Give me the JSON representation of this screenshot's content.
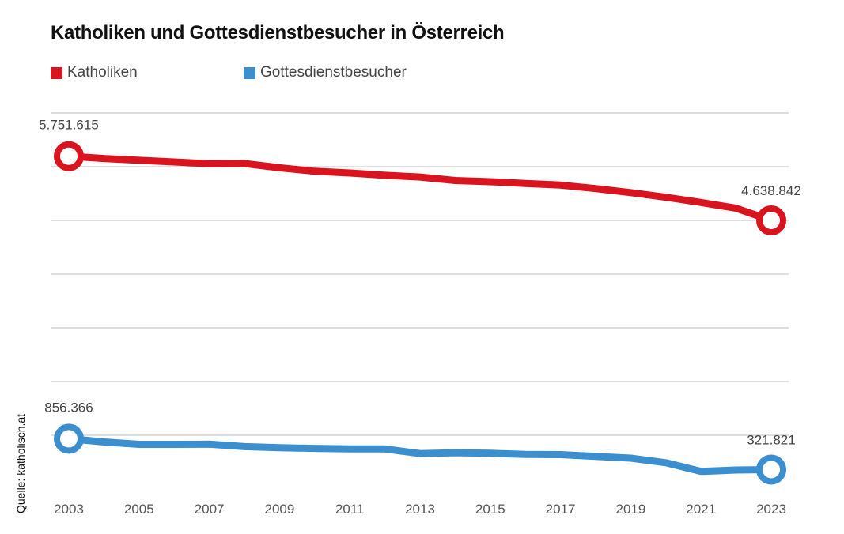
{
  "title": "Katholiken und Gottesdienstbesucher in Österreich",
  "source": "Quelle: katholisch.at",
  "legend": [
    {
      "label": "Katholiken",
      "color": "#d9141e"
    },
    {
      "label": "Gottesdienstbesucher",
      "color": "#3b8fcf"
    }
  ],
  "chart_data": {
    "type": "line",
    "title": "Katholiken und Gottesdienstbesucher in Österreich",
    "xlabel": "",
    "ylabel": "",
    "ylim": [
      0,
      6500000
    ],
    "x": [
      2003,
      2004,
      2005,
      2006,
      2007,
      2008,
      2009,
      2010,
      2011,
      2012,
      2013,
      2014,
      2015,
      2016,
      2017,
      2018,
      2019,
      2020,
      2021,
      2022,
      2023
    ],
    "x_tick_labels": [
      "2003",
      "2005",
      "2007",
      "2009",
      "2011",
      "2013",
      "2015",
      "2017",
      "2019",
      "2021",
      "2023"
    ],
    "grid": true,
    "legend_position": "top-left",
    "series": [
      {
        "name": "Katholiken",
        "color": "#d9141e",
        "values": [
          5751615,
          5712000,
          5680000,
          5651000,
          5621000,
          5624000,
          5550000,
          5490000,
          5460000,
          5420000,
          5390000,
          5330000,
          5310000,
          5280000,
          5250000,
          5190000,
          5120000,
          5040000,
          4950000,
          4850000,
          4638842
        ],
        "start_label": "5.751.615",
        "end_label": "4.638.842"
      },
      {
        "name": "Gottesdienstbesucher",
        "color": "#3b8fcf",
        "values": [
          856366,
          800000,
          760000,
          760000,
          762000,
          720000,
          700000,
          690000,
          682000,
          680000,
          600000,
          615000,
          605000,
          585000,
          582000,
          550000,
          520000,
          440000,
          290000,
          315000,
          321821
        ],
        "start_label": "856.366",
        "end_label": "321.821"
      }
    ]
  }
}
